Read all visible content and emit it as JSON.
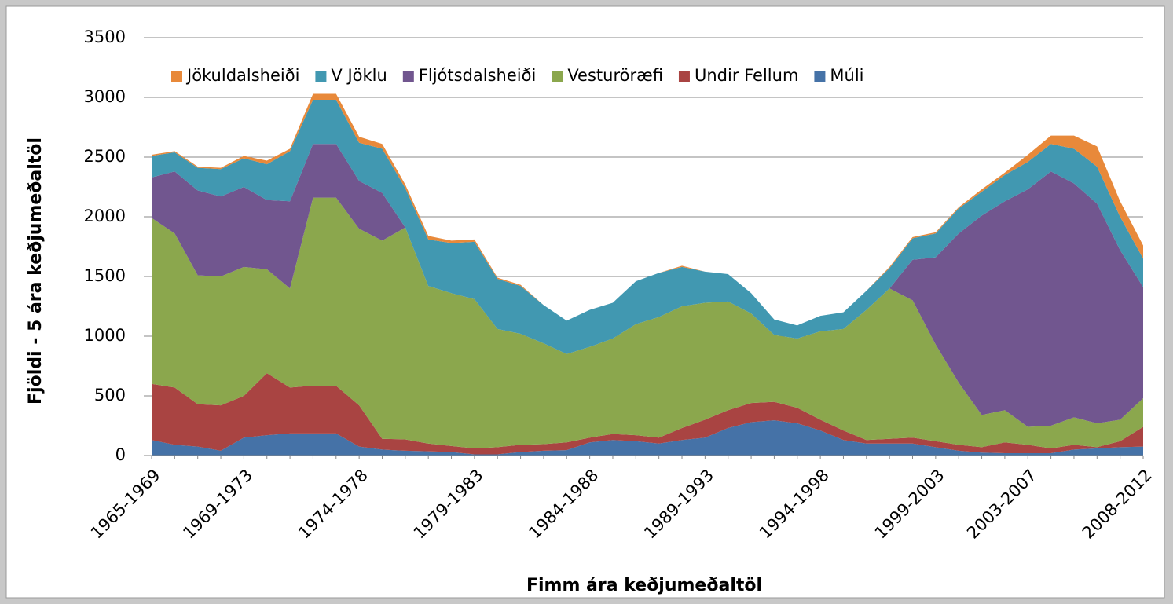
{
  "chart_data": {
    "type": "stacked_area",
    "xlabel": "Fimm ára keðjumeðaltöl",
    "ylabel": "Fjöldi - 5 ára keðjumeðaltöl",
    "categories": [
      "1965-1969",
      null,
      null,
      null,
      "1969-1973",
      null,
      null,
      null,
      null,
      "1974-1978",
      null,
      null,
      null,
      null,
      "1979-1983",
      null,
      null,
      null,
      null,
      "1984-1988",
      null,
      null,
      null,
      null,
      "1989-1993",
      null,
      null,
      null,
      null,
      "1994-1998",
      null,
      null,
      null,
      null,
      "1999-2003",
      null,
      null,
      null,
      "2003-2007",
      null,
      null,
      null,
      null,
      "2008-2012"
    ],
    "series": [
      {
        "name": "Múli",
        "color": "#4572a7",
        "values": [
          130,
          90,
          75,
          40,
          150,
          170,
          185,
          185,
          185,
          75,
          50,
          40,
          35,
          30,
          10,
          10,
          30,
          40,
          45,
          110,
          130,
          120,
          100,
          130,
          150,
          230,
          280,
          295,
          270,
          210,
          130,
          100,
          100,
          100,
          70,
          40,
          25,
          20,
          20,
          20,
          50,
          60,
          70,
          75
        ]
      },
      {
        "name": "Undir Fellum",
        "color": "#a94442",
        "values": [
          470,
          480,
          355,
          380,
          350,
          520,
          385,
          400,
          400,
          345,
          90,
          95,
          65,
          50,
          50,
          60,
          60,
          55,
          65,
          40,
          50,
          50,
          50,
          100,
          150,
          150,
          160,
          155,
          130,
          90,
          80,
          30,
          40,
          50,
          50,
          50,
          45,
          90,
          70,
          40,
          40,
          10,
          50,
          165
        ]
      },
      {
        "name": "Vesturöræfi",
        "color": "#8ba74d",
        "values": [
          1390,
          1290,
          1080,
          1080,
          1080,
          870,
          830,
          1575,
          1575,
          1480,
          1660,
          1775,
          1320,
          1280,
          1250,
          990,
          930,
          845,
          740,
          760,
          800,
          930,
          1010,
          1020,
          980,
          910,
          750,
          560,
          580,
          740,
          850,
          1090,
          1260,
          1150,
          810,
          520,
          270,
          270,
          150,
          190,
          230,
          200,
          180,
          240
        ]
      },
      {
        "name": "Fljótsdalsheiði",
        "color": "#71568f",
        "values": [
          340,
          520,
          710,
          670,
          670,
          580,
          730,
          450,
          450,
          400,
          400,
          0,
          0,
          0,
          0,
          0,
          0,
          0,
          0,
          0,
          0,
          0,
          0,
          0,
          0,
          0,
          0,
          0,
          0,
          0,
          0,
          0,
          0,
          340,
          730,
          1250,
          1670,
          1750,
          1990,
          2130,
          1960,
          1840,
          1420,
          930
        ]
      },
      {
        "name": "V Jöklu",
        "color": "#4198b1",
        "values": [
          180,
          160,
          190,
          230,
          240,
          300,
          420,
          370,
          370,
          320,
          370,
          330,
          390,
          420,
          480,
          420,
          400,
          320,
          280,
          310,
          300,
          360,
          370,
          330,
          260,
          230,
          170,
          130,
          110,
          130,
          140,
          160,
          170,
          180,
          200,
          210,
          200,
          220,
          230,
          230,
          290,
          310,
          280,
          240
        ]
      },
      {
        "name": "Jökuldalsheiði",
        "color": "#e8893a",
        "values": [
          10,
          10,
          10,
          10,
          20,
          30,
          20,
          50,
          50,
          50,
          40,
          30,
          30,
          20,
          20,
          10,
          10,
          0,
          0,
          0,
          0,
          0,
          0,
          10,
          0,
          0,
          0,
          0,
          0,
          0,
          0,
          0,
          10,
          10,
          10,
          10,
          20,
          20,
          60,
          70,
          110,
          170,
          130,
          110
        ]
      }
    ],
    "ylim": [
      0,
      3500
    ],
    "yticks": [
      0,
      500,
      1000,
      1500,
      2000,
      2500,
      3000,
      3500
    ],
    "grid": true,
    "legend": "top"
  }
}
